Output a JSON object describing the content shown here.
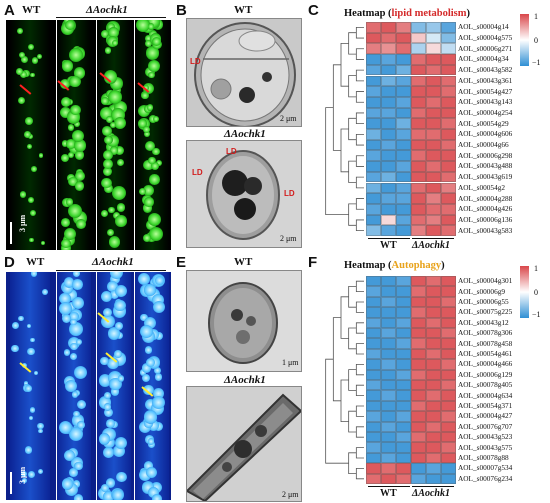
{
  "panels": {
    "A": {
      "letter": "A",
      "wt": "WT",
      "mut": "ΔAochk1",
      "scale": "3 μm"
    },
    "B": {
      "letter": "B",
      "wt": "WT",
      "mut": "ΔAochk1",
      "scale_top": "2 μm",
      "scale_bottom": "2 μm",
      "ld": "LD"
    },
    "C": {
      "letter": "C",
      "title_prefix": "Heatmap (",
      "title_highlight": "lipid metabolism",
      "title_suffix": ")",
      "highlight_color": "#d42a2a",
      "legend": [
        "1",
        "0",
        "−1"
      ],
      "col_wt": "WT",
      "col_mut": "ΔAochk1",
      "genes": [
        "AOL_s00004g14",
        "AOL_s00004g575",
        "AOL_s00006g271",
        "AOL_s00004g34",
        "AOL_s00043g582",
        "AOL_s00043g361",
        "AOL_s00054g427",
        "AOL_s00043g143",
        "AOL_s00004g254",
        "AOL_s00054g29",
        "AOL_s00004g606",
        "AOL_s00004g66",
        "AOL_s00006g298",
        "AOL_s00043g488",
        "AOL_s00043g619",
        "AOL_s00054g2",
        "AOL_s00004g288",
        "AOL_s00004g426",
        "AOL_s00006g136",
        "AOL_s00043g583"
      ]
    },
    "D": {
      "letter": "D",
      "wt": "WT",
      "mut": "ΔAochk1",
      "scale": "3 μm"
    },
    "E": {
      "letter": "E",
      "wt": "WT",
      "mut": "ΔAochk1",
      "scale_top": "1 μm",
      "scale_bottom": "2 μm"
    },
    "F": {
      "letter": "F",
      "title_prefix": "Heatmap (",
      "title_highlight": "Autophagy",
      "title_suffix": ")",
      "highlight_color": "#e8a21a",
      "legend": [
        "1",
        "0",
        "−1"
      ],
      "col_wt": "WT",
      "col_mut": "ΔAochk1",
      "genes": [
        "AOL_s00004g301",
        "AOL_s00006g9",
        "AOL_s00006g55",
        "AOL_s00075g225",
        "AOL_s00043g12",
        "AOL_s00078g306",
        "AOL_s00078g458",
        "AOL_s00054g461",
        "AOL_s00004g466",
        "AOL_s00006g129",
        "AOL_s00078g405",
        "AOL_s00004g634",
        "AOL_s00054g371",
        "AOL_s00004g427",
        "AOL_s00076g707",
        "AOL_s00043g523",
        "AOL_s00043g575",
        "AOL_s00078g88",
        "AOL_s00007g534",
        "AOL_s00076g234"
      ]
    }
  },
  "colors": {
    "high": "#d9474b",
    "low": "#2f8fd4",
    "mid": "#ffffff"
  },
  "heatmap_C": [
    [
      0.8,
      0.9,
      0.7,
      -0.6,
      -0.5,
      -0.8
    ],
    [
      0.9,
      0.8,
      0.9,
      0.3,
      -0.2,
      -0.6
    ],
    [
      0.7,
      0.6,
      0.8,
      -0.4,
      0.2,
      -0.3
    ],
    [
      -0.9,
      -0.8,
      -0.9,
      0.8,
      0.9,
      0.9
    ],
    [
      -0.8,
      -0.9,
      -0.7,
      0.9,
      0.8,
      0.9
    ],
    [
      -0.9,
      -0.7,
      -0.8,
      0.8,
      0.9,
      0.8
    ],
    [
      -0.8,
      -0.9,
      -0.9,
      0.9,
      0.9,
      0.8
    ],
    [
      -0.9,
      -0.9,
      -0.8,
      0.9,
      0.8,
      0.9
    ],
    [
      -0.8,
      -0.8,
      -0.9,
      0.8,
      0.9,
      0.9
    ],
    [
      -0.9,
      -0.9,
      -0.7,
      0.9,
      0.9,
      0.8
    ],
    [
      -0.7,
      -0.9,
      -0.8,
      0.8,
      0.8,
      0.9
    ],
    [
      -0.9,
      -0.8,
      -0.9,
      0.9,
      0.9,
      0.8
    ],
    [
      -0.8,
      -0.9,
      -0.9,
      0.8,
      0.9,
      0.9
    ],
    [
      -0.9,
      -0.9,
      -0.8,
      0.9,
      0.8,
      0.9
    ],
    [
      -0.8,
      -0.7,
      -0.9,
      0.9,
      0.9,
      0.8
    ],
    [
      -0.7,
      -0.9,
      -0.8,
      0.8,
      0.9,
      0.7
    ],
    [
      -0.9,
      -0.8,
      -0.8,
      0.9,
      0.7,
      0.9
    ],
    [
      -0.8,
      -0.9,
      -0.9,
      0.9,
      0.8,
      0.8
    ],
    [
      -0.9,
      0.2,
      -0.8,
      0.8,
      0.7,
      0.9
    ],
    [
      -0.6,
      -0.8,
      -0.9,
      0.7,
      0.9,
      0.8
    ]
  ],
  "heatmap_F": [
    [
      -0.9,
      -0.9,
      -0.8,
      0.9,
      0.8,
      0.9
    ],
    [
      -0.8,
      -0.9,
      -0.9,
      0.8,
      0.9,
      0.9
    ],
    [
      -0.9,
      -0.8,
      -0.9,
      0.9,
      0.9,
      0.8
    ],
    [
      -0.9,
      -0.9,
      -0.9,
      0.8,
      0.9,
      0.9
    ],
    [
      -0.8,
      -0.9,
      -0.8,
      0.9,
      0.8,
      0.9
    ],
    [
      -0.9,
      -0.8,
      -0.9,
      0.9,
      0.9,
      0.8
    ],
    [
      -0.9,
      -0.9,
      -0.8,
      0.8,
      0.9,
      0.9
    ],
    [
      -0.8,
      -0.9,
      -0.9,
      0.9,
      0.8,
      0.9
    ],
    [
      -0.9,
      -0.8,
      -0.9,
      0.9,
      0.9,
      0.8
    ],
    [
      -0.9,
      -0.9,
      -0.8,
      0.8,
      0.9,
      0.9
    ],
    [
      -0.8,
      -0.9,
      -0.9,
      0.9,
      0.9,
      0.8
    ],
    [
      -0.9,
      -0.8,
      -0.9,
      0.9,
      0.8,
      0.9
    ],
    [
      -0.9,
      -0.9,
      -0.9,
      0.8,
      0.9,
      0.9
    ],
    [
      -0.8,
      -0.9,
      -0.8,
      0.9,
      0.9,
      0.8
    ],
    [
      -0.9,
      -0.8,
      -0.9,
      0.9,
      0.8,
      0.9
    ],
    [
      -0.9,
      -0.9,
      -0.8,
      0.8,
      0.9,
      0.9
    ],
    [
      -0.8,
      -0.9,
      -0.9,
      0.9,
      0.9,
      0.8
    ],
    [
      -0.9,
      -0.8,
      -0.9,
      0.9,
      0.8,
      0.9
    ],
    [
      0.9,
      0.8,
      0.9,
      -0.9,
      -0.8,
      -0.9
    ],
    [
      0.8,
      0.9,
      0.8,
      -0.8,
      -0.9,
      -0.9
    ]
  ]
}
